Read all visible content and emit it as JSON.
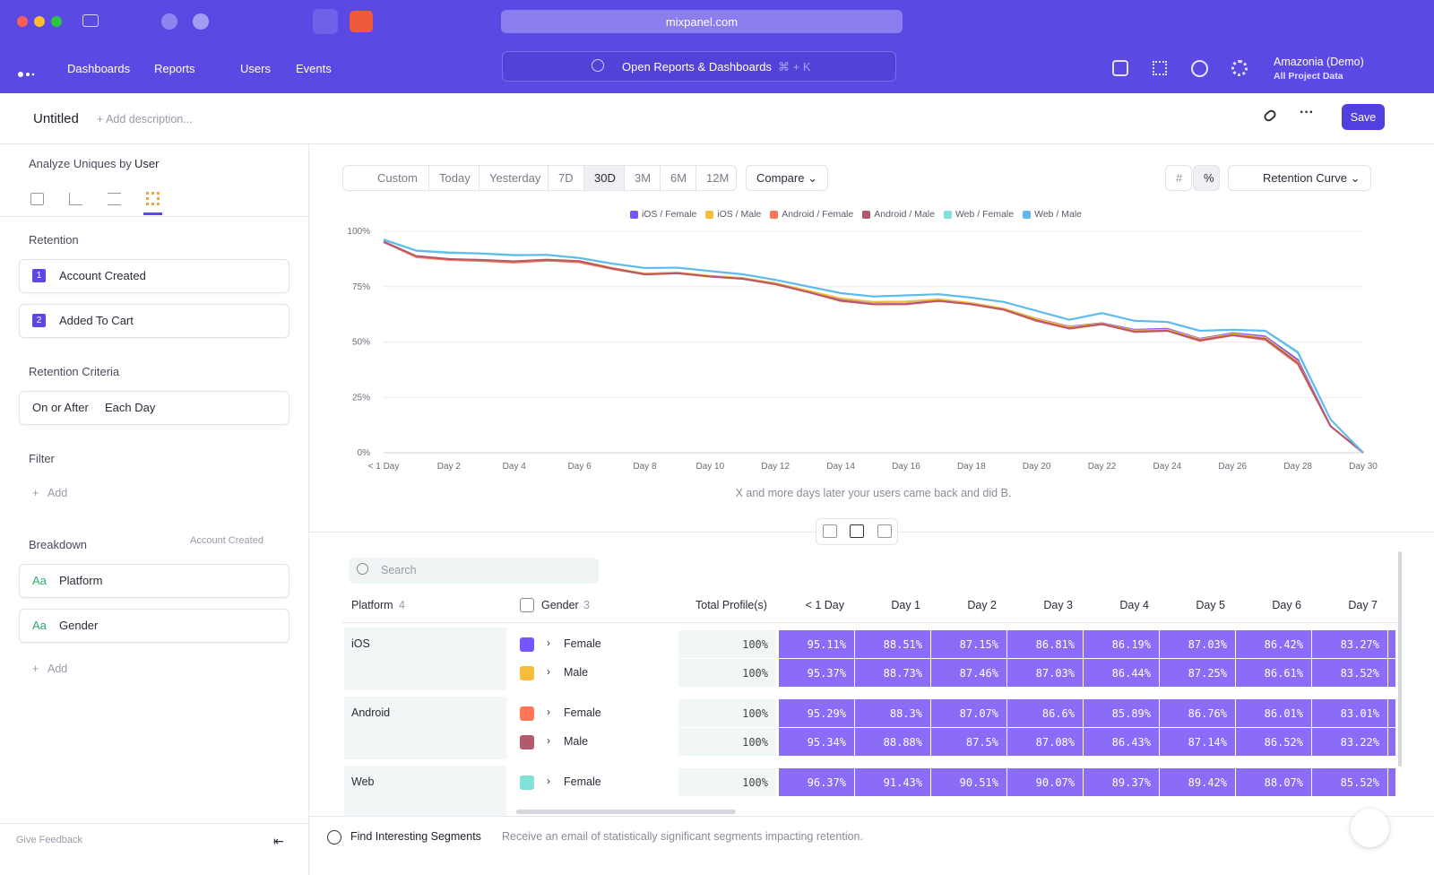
{
  "browser": {
    "url": "mixpanel.com"
  },
  "nav": {
    "items": [
      "Dashboards",
      "Reports",
      "Users",
      "Events"
    ],
    "search": "Open Reports & Dashboards",
    "shortcut": "⌘ + K",
    "project": "Amazonia (Demo)",
    "project_scope": "All Project Data"
  },
  "header": {
    "title": "Untitled",
    "description": "+ Add description...",
    "save": "Save"
  },
  "sidebar": {
    "analyze_label": "Analyze Uniques by",
    "analyze_value": "User",
    "retention": "Retention",
    "events": [
      {
        "index": "1",
        "name": "Account Created"
      },
      {
        "index": "2",
        "name": "Added To Cart"
      }
    ],
    "criteria_title": "Retention Criteria",
    "criteria": [
      "On or After",
      "Each Day"
    ],
    "filter_title": "Filter",
    "filter_add": "Add",
    "breakdown_title": "Breakdown",
    "breakdown_event": "Account Created",
    "breakdowns": [
      {
        "icon": "Aa",
        "name": "Platform"
      },
      {
        "icon": "Aa",
        "name": "Gender"
      }
    ],
    "breakdown_add": "Add",
    "feedback": "Give Feedback"
  },
  "toolbar": {
    "ranges": [
      "Custom",
      "Today",
      "Yesterday",
      "7D",
      "30D",
      "3M",
      "6M",
      "12M"
    ],
    "compare": "Compare",
    "view": "Retention Curve"
  },
  "chart_data": {
    "type": "line",
    "categories": [
      "< 1 Day",
      null,
      "Day 2",
      null,
      "Day 4",
      null,
      "Day 6",
      null,
      "Day 8",
      null,
      "Day 10",
      null,
      "Day 12",
      null,
      "Day 14",
      null,
      "Day 16",
      null,
      "Day 18",
      null,
      "Day 20",
      null,
      "Day 22",
      null,
      "Day 24",
      null,
      "Day 26",
      null,
      "Day 28",
      null,
      "Day 30"
    ],
    "series": [
      {
        "name": "iOS / Female",
        "color": "#7856ff",
        "values": [
          95.11,
          88.51,
          87.15,
          86.81,
          86.19,
          87.03,
          86.42,
          83.27,
          80.8,
          81.3,
          79.8,
          78.8,
          76.5,
          73,
          69.5,
          68,
          68.2,
          69.2,
          67.5,
          65,
          60.5,
          57,
          58.5,
          55.5,
          56,
          51.5,
          54,
          52.5,
          42,
          12,
          0
        ]
      },
      {
        "name": "iOS / Male",
        "color": "#f8bc3b",
        "values": [
          95.37,
          88.73,
          87.46,
          87.03,
          86.44,
          87.25,
          86.61,
          83.52,
          80.9,
          81.4,
          79.9,
          78.9,
          76.6,
          73.2,
          69.7,
          68.1,
          68.3,
          69.3,
          67.6,
          65.1,
          60.4,
          56.8,
          58.3,
          55.2,
          55.6,
          51.2,
          53.6,
          52,
          41,
          12,
          0
        ]
      },
      {
        "name": "Android / Female",
        "color": "#ff7557",
        "values": [
          95.29,
          88.3,
          87.07,
          86.6,
          85.89,
          86.76,
          86.01,
          83.01,
          80.5,
          81,
          79.5,
          78.5,
          76,
          72.5,
          68.5,
          67,
          67,
          68.5,
          67,
          64.5,
          59.5,
          56,
          58,
          54.5,
          55,
          50.5,
          53,
          51,
          40,
          12,
          0
        ]
      },
      {
        "name": "Android / Male",
        "color": "#b2596e",
        "values": [
          95.34,
          88.88,
          87.5,
          87.08,
          86.43,
          87.14,
          86.52,
          83.22,
          80.6,
          81.1,
          79.6,
          78.6,
          76.2,
          72.6,
          68.7,
          67.1,
          67.2,
          68.6,
          67.1,
          64.6,
          59.7,
          56.2,
          58.1,
          54.7,
          55.1,
          50.8,
          53.1,
          51.4,
          40.5,
          12,
          0
        ]
      },
      {
        "name": "Web / Female",
        "color": "#80e1d9",
        "values": [
          96.37,
          91.43,
          90.51,
          90.07,
          89.37,
          89.42,
          88.07,
          85.52,
          83.5,
          83.5,
          82,
          80.5,
          78,
          75,
          72,
          70.5,
          71,
          71.5,
          70,
          68,
          64,
          60,
          63,
          59.5,
          59,
          55,
          55.5,
          55,
          45,
          15,
          0
        ]
      },
      {
        "name": "Web / Male",
        "color": "#5fb8f0",
        "values": [
          96.2,
          91.2,
          90.3,
          89.9,
          89.2,
          89.3,
          87.9,
          85.4,
          83.4,
          83.6,
          82.1,
          80.6,
          78.1,
          75.1,
          72.1,
          70.6,
          71.1,
          71.6,
          70.1,
          68.1,
          64.1,
          60.1,
          63.1,
          59.6,
          59.1,
          55.1,
          55.6,
          55.1,
          45.5,
          15,
          0
        ]
      }
    ],
    "ylim": [
      0,
      100
    ],
    "yticks": [
      {
        "value": 0,
        "label": "0%"
      },
      {
        "value": 25,
        "label": "25%"
      },
      {
        "value": 50,
        "label": "50%"
      },
      {
        "value": 75,
        "label": "75%"
      },
      {
        "value": 100,
        "label": "100%"
      }
    ],
    "grid": true,
    "legend": "top",
    "xlabel": "X and more days later your users came back and did B."
  },
  "table": {
    "search": "Search",
    "headers": {
      "platform": "Platform",
      "platform_count": "4",
      "gender": "Gender",
      "gender_count": "3",
      "total": "Total Profile(s)",
      "days": [
        "< 1 Day",
        "Day 1",
        "Day 2",
        "Day 3",
        "Day 4",
        "Day 5",
        "Day 6",
        "Day 7"
      ]
    },
    "groups": [
      {
        "platform": "iOS",
        "rows": [
          {
            "gender": "Female",
            "total": "100%",
            "values": [
              "95.11%",
              "88.51%",
              "87.15%",
              "86.81%",
              "86.19%",
              "87.03%",
              "86.42%",
              "83.27%"
            ]
          },
          {
            "gender": "Male",
            "total": "100%",
            "values": [
              "95.37%",
              "88.73%",
              "87.46%",
              "87.03%",
              "86.44%",
              "87.25%",
              "86.61%",
              "83.52%"
            ]
          }
        ]
      },
      {
        "platform": "Android",
        "rows": [
          {
            "gender": "Female",
            "total": "100%",
            "values": [
              "95.29%",
              "88.3%",
              "87.07%",
              "86.6%",
              "85.89%",
              "86.76%",
              "86.01%",
              "83.01%"
            ]
          },
          {
            "gender": "Male",
            "total": "100%",
            "values": [
              "95.34%",
              "88.88%",
              "87.5%",
              "87.08%",
              "86.43%",
              "87.14%",
              "86.52%",
              "83.22%"
            ]
          }
        ]
      },
      {
        "platform": "Web",
        "rows": [
          {
            "gender": "Female",
            "total": "100%",
            "values": [
              "96.37%",
              "91.43%",
              "90.51%",
              "90.07%",
              "89.37%",
              "89.42%",
              "88.07%",
              "85.52%"
            ]
          }
        ]
      }
    ]
  },
  "footer": {
    "title": "Find Interesting Segments",
    "text": "Receive an email of statistically significant segments impacting retention."
  }
}
